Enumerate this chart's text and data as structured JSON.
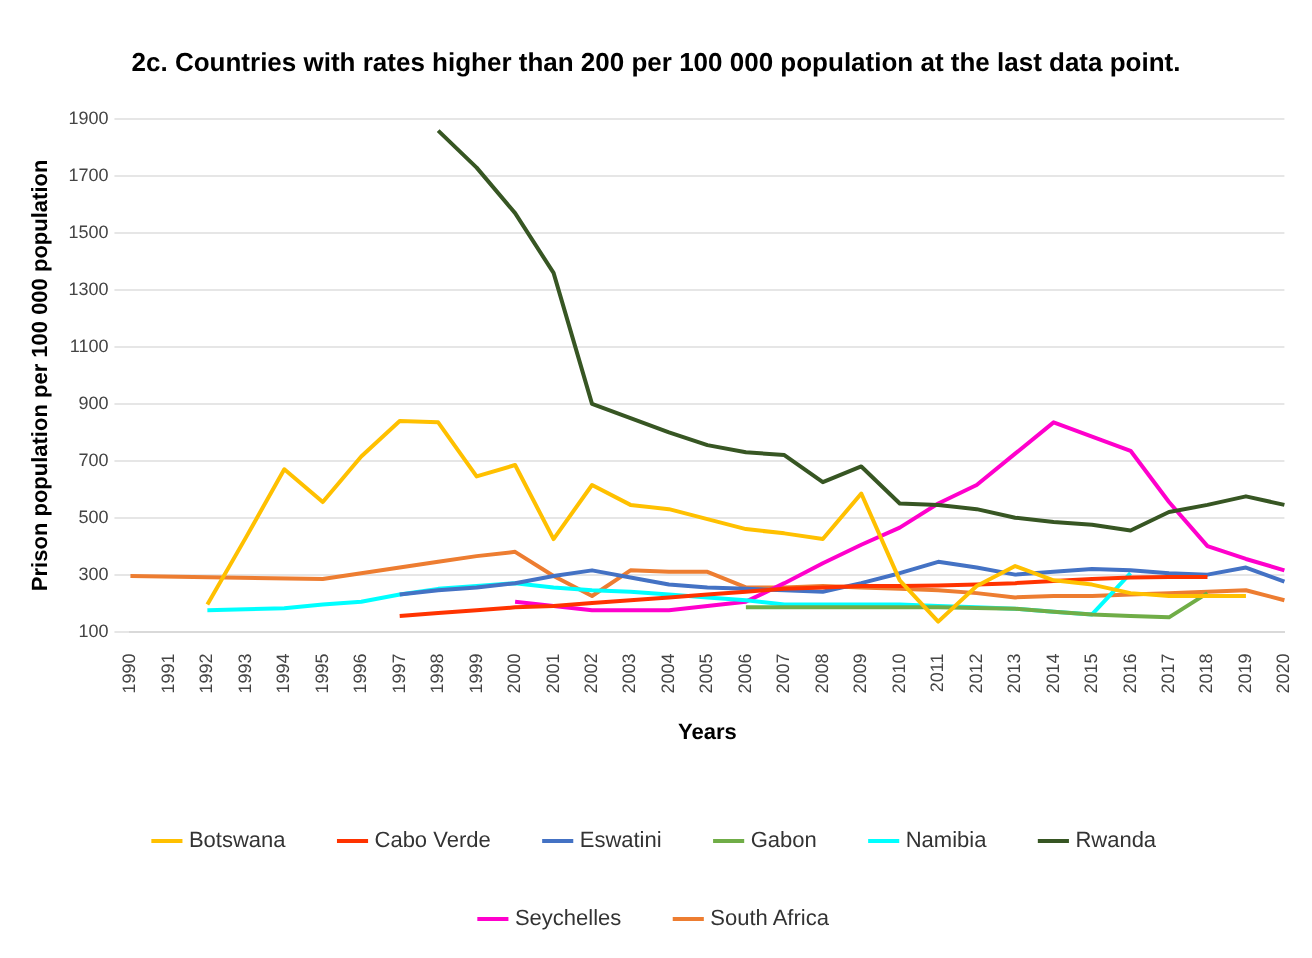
{
  "chart_data": {
    "type": "line",
    "title": "2c. Countries with rates higher than 200 per 100 000 population at the last data point.",
    "xlabel": "Years",
    "ylabel": "Prison population per 100 000 population",
    "categories": [
      "1990",
      "1991",
      "1992",
      "1993",
      "1994",
      "1995",
      "1996",
      "1997",
      "1998",
      "1999",
      "2000",
      "2001",
      "2002",
      "2003",
      "2004",
      "2005",
      "2006",
      "2007",
      "2008",
      "2009",
      "2010",
      "2011",
      "2012",
      "2013",
      "2014",
      "2015",
      "2016",
      "2017",
      "2018",
      "2019",
      "2020"
    ],
    "series": [
      {
        "name": "Botswana",
        "color": "#ffc000",
        "values": [
          null,
          null,
          195,
          430,
          670,
          555,
          715,
          840,
          835,
          645,
          685,
          425,
          615,
          545,
          530,
          495,
          460,
          445,
          425,
          585,
          280,
          135,
          260,
          330,
          280,
          265,
          235,
          225,
          225,
          225,
          null
        ]
      },
      {
        "name": "Cabo Verde",
        "color": "#ff3300",
        "values": [
          null,
          null,
          null,
          null,
          null,
          null,
          null,
          155,
          165,
          175,
          185,
          190,
          200,
          210,
          220,
          230,
          240,
          250,
          255,
          260,
          260,
          262,
          265,
          270,
          278,
          285,
          290,
          292,
          292,
          null,
          null
        ]
      },
      {
        "name": "Eswatini",
        "color": "#4472c4",
        "values": [
          null,
          null,
          null,
          null,
          null,
          null,
          null,
          230,
          245,
          255,
          270,
          295,
          315,
          290,
          265,
          255,
          250,
          245,
          240,
          270,
          305,
          345,
          325,
          300,
          310,
          320,
          315,
          305,
          300,
          325,
          275
        ]
      },
      {
        "name": "Gabon",
        "color": "#70ad47",
        "values": [
          null,
          null,
          null,
          null,
          null,
          null,
          null,
          null,
          null,
          null,
          null,
          null,
          null,
          null,
          null,
          null,
          185,
          185,
          185,
          185,
          185,
          185,
          183,
          180,
          170,
          160,
          155,
          150,
          235,
          null,
          null
        ]
      },
      {
        "name": "Namibia",
        "color": "#00ffff",
        "values": [
          null,
          null,
          175,
          178,
          182,
          195,
          205,
          230,
          250,
          260,
          270,
          255,
          245,
          240,
          230,
          220,
          210,
          195,
          195,
          195,
          195,
          190,
          185,
          180,
          170,
          160,
          305,
          null,
          null,
          null,
          null
        ]
      },
      {
        "name": "Rwanda",
        "color": "#375623",
        "values": [
          null,
          null,
          null,
          null,
          null,
          null,
          null,
          null,
          1860,
          1730,
          1570,
          1360,
          900,
          850,
          800,
          755,
          730,
          720,
          625,
          680,
          550,
          545,
          530,
          500,
          485,
          475,
          455,
          520,
          545,
          575,
          545
        ]
      },
      {
        "name": "Seychelles",
        "color": "#ff00cc",
        "values": [
          null,
          null,
          null,
          null,
          null,
          null,
          null,
          null,
          null,
          null,
          205,
          190,
          175,
          175,
          175,
          190,
          205,
          270,
          340,
          405,
          465,
          550,
          615,
          725,
          835,
          785,
          735,
          555,
          400,
          355,
          315
        ]
      },
      {
        "name": "South Africa",
        "color": "#ed7d31",
        "values": [
          295,
          null,
          null,
          null,
          null,
          285,
          305,
          325,
          345,
          365,
          380,
          295,
          225,
          315,
          310,
          310,
          255,
          255,
          260,
          255,
          250,
          245,
          235,
          220,
          225,
          225,
          230,
          235,
          240,
          245,
          210
        ]
      }
    ],
    "ylim": [
      100,
      1900
    ],
    "yticks": [
      100,
      300,
      500,
      700,
      900,
      1100,
      1300,
      1500,
      1700,
      1900
    ],
    "grid": "y",
    "legend": "bottom",
    "marker": "none",
    "line_style": "solid"
  }
}
